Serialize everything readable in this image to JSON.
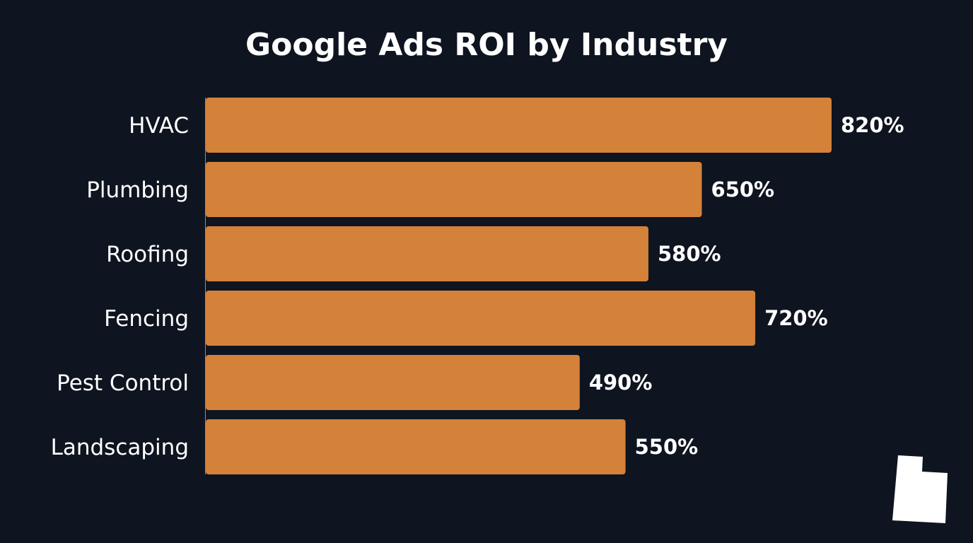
{
  "chart_data": {
    "type": "bar",
    "orientation": "horizontal",
    "title": "Google Ads ROI by Industry",
    "categories": [
      "HVAC",
      "Plumbing",
      "Roofing",
      "Fencing",
      "Pest Control",
      "Landscaping"
    ],
    "values": [
      820,
      650,
      580,
      720,
      490,
      550
    ],
    "value_labels": [
      "820%",
      "650%",
      "580%",
      "720%",
      "490%",
      "550%"
    ],
    "xlabel": "",
    "ylabel": "",
    "xlim": [
      0,
      900
    ],
    "grid": false,
    "legend": "none",
    "bar_color": "#d4813a",
    "background_color": "#0e1420"
  },
  "logo": {
    "icon": "utah-state-icon",
    "color": "#ffffff"
  }
}
